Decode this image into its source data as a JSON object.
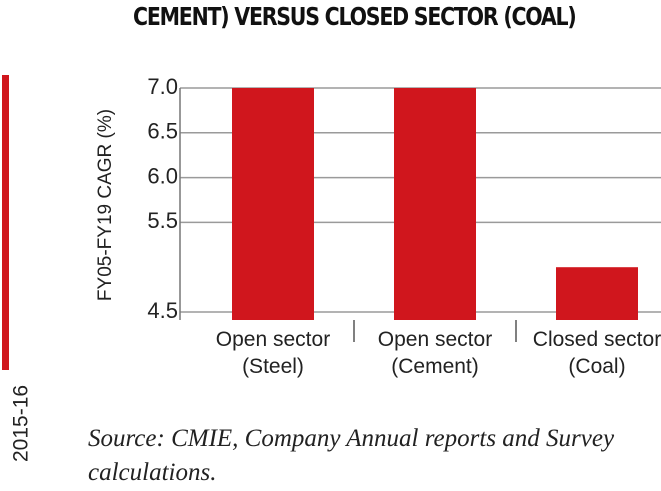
{
  "chart_data": {
    "type": "bar",
    "title": "CEMENT) VERSUS CLOSED SECTOR (COAL)",
    "y_label": "FY05-FY19 CAGR (%)",
    "categories": [
      "Open sector (Steel)",
      "Open sector (Cement)",
      "Closed sector (Coal)"
    ],
    "values": [
      7.0,
      7.0,
      5.0
    ],
    "color": "#d0161d",
    "ylim": [
      4.5,
      7.0
    ],
    "yticks": [
      {
        "value": 4.5,
        "label": "4.5"
      },
      {
        "value": 5.5,
        "label": "5.5"
      },
      {
        "value": 6.0,
        "label": "6.0"
      },
      {
        "value": 6.5,
        "label": "6.5"
      },
      {
        "value": 7.0,
        "label": "7.0"
      }
    ],
    "grid": true,
    "source": "Source: CMIE, Company Annual reports and Survey calculations.",
    "left_fragment_label": "2015-16"
  }
}
